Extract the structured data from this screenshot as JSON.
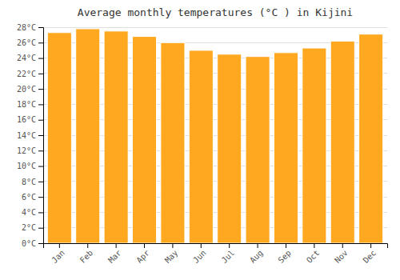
{
  "chart_data": {
    "type": "bar",
    "title": "Average monthly temperatures (°C ) in Kijini",
    "categories": [
      "Jan",
      "Feb",
      "Mar",
      "Apr",
      "May",
      "Jun",
      "Jul",
      "Aug",
      "Sep",
      "Oct",
      "Nov",
      "Dec"
    ],
    "values": [
      27.3,
      27.8,
      27.5,
      26.8,
      26.0,
      25.0,
      24.5,
      24.2,
      24.7,
      25.3,
      26.2,
      27.1
    ],
    "color": "#FFA820",
    "ylim": [
      0,
      28
    ],
    "yticks": [
      {
        "value": 0,
        "label": "0°C"
      },
      {
        "value": 2,
        "label": "2°C"
      },
      {
        "value": 4,
        "label": "4°C"
      },
      {
        "value": 6,
        "label": "6°C"
      },
      {
        "value": 8,
        "label": "8°C"
      },
      {
        "value": 10,
        "label": "10°C"
      },
      {
        "value": 12,
        "label": "12°C"
      },
      {
        "value": 14,
        "label": "14°C"
      },
      {
        "value": 16,
        "label": "16°C"
      },
      {
        "value": 18,
        "label": "18°C"
      },
      {
        "value": 20,
        "label": "20°C"
      },
      {
        "value": 22,
        "label": "22°C"
      },
      {
        "value": 24,
        "label": "24°C"
      },
      {
        "value": 26,
        "label": "26°C"
      },
      {
        "value": 28,
        "label": "28°C"
      }
    ],
    "grid": true
  }
}
